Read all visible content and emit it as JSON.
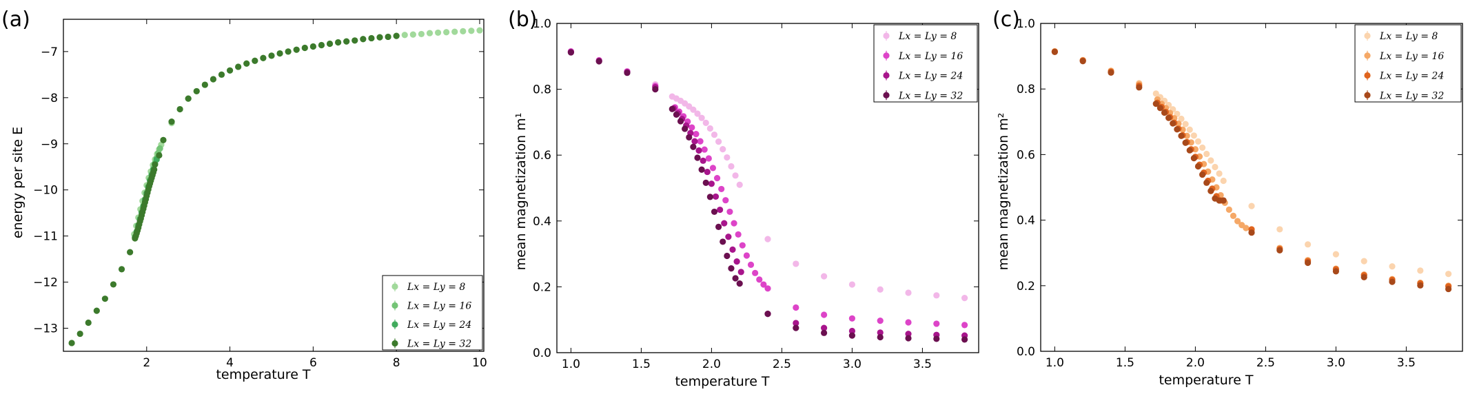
{
  "chart_data": [
    {
      "type": "scatter",
      "panel_label": "(a)",
      "xlabel": "temperature T",
      "ylabel": "energy per site E",
      "xlim": [
        0,
        10.1
      ],
      "ylim": [
        -13.5,
        -6.3
      ],
      "xticks": [
        2,
        4,
        6,
        8,
        10
      ],
      "xtick_labels": [
        "2",
        "4",
        "6",
        "8",
        "10"
      ],
      "yticks": [
        -13,
        -12,
        -11,
        -10,
        -9,
        -8,
        -7
      ],
      "ytick_labels": [
        "−13",
        "−12",
        "−11",
        "−10",
        "−9",
        "−8",
        "−7"
      ],
      "legend_loc": "lower-right",
      "grid": false,
      "series": [
        {
          "name": "Lx = Ly = 8",
          "color": "#a1d99b",
          "x": [
            1.7,
            1.75,
            1.8,
            1.85,
            1.9,
            1.95,
            2.0,
            2.05,
            2.1,
            2.15,
            2.2,
            2.25,
            2.3,
            2.35,
            2.4,
            2.6,
            2.8,
            3.0,
            3.2,
            3.4,
            3.6,
            3.8,
            4.0,
            4.2,
            4.4,
            4.6,
            4.8,
            5.0,
            5.2,
            5.4,
            5.6,
            5.8,
            6.0,
            6.2,
            6.4,
            6.6,
            6.8,
            7.0,
            7.2,
            7.4,
            7.6,
            7.8,
            8.0,
            8.2,
            8.4,
            8.6,
            8.8,
            9.0,
            9.2,
            9.4,
            9.6,
            9.8,
            10.0
          ],
          "y": [
            -10.96,
            -10.78,
            -10.6,
            -10.42,
            -10.24,
            -10.06,
            -9.9,
            -9.74,
            -9.6,
            -9.46,
            -9.34,
            -9.22,
            -9.12,
            -9.02,
            -8.92,
            -8.55,
            -8.25,
            -8.02,
            -7.86,
            -7.72,
            -7.6,
            -7.5,
            -7.41,
            -7.33,
            -7.26,
            -7.2,
            -7.14,
            -7.09,
            -7.04,
            -7.0,
            -6.96,
            -6.92,
            -6.89,
            -6.86,
            -6.83,
            -6.8,
            -6.78,
            -6.76,
            -6.73,
            -6.71,
            -6.69,
            -6.68,
            -6.66,
            -6.64,
            -6.63,
            -6.62,
            -6.6,
            -6.59,
            -6.58,
            -6.57,
            -6.56,
            -6.55,
            -6.54
          ]
        },
        {
          "name": "Lx = Ly = 16",
          "color": "#74c476",
          "x": [
            1.72,
            1.76,
            1.8,
            1.84,
            1.88,
            1.92,
            1.96,
            2.0,
            2.04,
            2.08,
            2.12,
            2.16,
            2.2,
            2.24,
            2.28,
            2.32
          ],
          "y": [
            -11.02,
            -10.9,
            -10.76,
            -10.62,
            -10.48,
            -10.34,
            -10.2,
            -10.06,
            -9.92,
            -9.78,
            -9.66,
            -9.54,
            -9.42,
            -9.31,
            -9.2,
            -9.1
          ]
        },
        {
          "name": "Lx = Ly = 24",
          "color": "#41ab5d",
          "x": [
            1.72,
            1.76,
            1.8,
            1.84,
            1.88,
            1.92,
            1.96,
            2.0,
            2.04,
            2.08,
            2.12,
            2.16,
            2.2,
            2.24
          ],
          "y": [
            -11.03,
            -10.91,
            -10.78,
            -10.64,
            -10.5,
            -10.36,
            -10.22,
            -10.08,
            -9.94,
            -9.8,
            -9.68,
            -9.56,
            -9.44,
            -9.34
          ]
        },
        {
          "name": "Lx = Ly = 32",
          "color": "#3c7a2c",
          "x": [
            0.2,
            0.4,
            0.6,
            0.8,
            1.0,
            1.2,
            1.4,
            1.6,
            1.72,
            1.74,
            1.76,
            1.78,
            1.8,
            1.82,
            1.84,
            1.86,
            1.88,
            1.9,
            1.92,
            1.94,
            1.96,
            1.98,
            2.0,
            2.02,
            2.04,
            2.06,
            2.08,
            2.1,
            2.12,
            2.14,
            2.16,
            2.18,
            2.2,
            2.3,
            2.4,
            2.6,
            2.8,
            3.0,
            3.2,
            3.4,
            3.6,
            3.8,
            4.0,
            4.2,
            4.4,
            4.6,
            4.8,
            5.0,
            5.2,
            5.4,
            5.6,
            5.8,
            6.0,
            6.2,
            6.4,
            6.6,
            6.8,
            7.0,
            7.2,
            7.4,
            7.6,
            7.8,
            8.0
          ],
          "y": [
            -13.32,
            -13.12,
            -12.88,
            -12.62,
            -12.36,
            -12.05,
            -11.72,
            -11.35,
            -11.05,
            -11.0,
            -10.94,
            -10.88,
            -10.82,
            -10.75,
            -10.68,
            -10.62,
            -10.55,
            -10.48,
            -10.41,
            -10.34,
            -10.27,
            -10.2,
            -10.13,
            -10.06,
            -9.99,
            -9.92,
            -9.86,
            -9.8,
            -9.74,
            -9.68,
            -9.62,
            -9.56,
            -9.45,
            -9.25,
            -8.92,
            -8.52,
            -8.25,
            -8.02,
            -7.86,
            -7.72,
            -7.6,
            -7.5,
            -7.41,
            -7.33,
            -7.26,
            -7.2,
            -7.14,
            -7.09,
            -7.04,
            -7.0,
            -6.96,
            -6.92,
            -6.89,
            -6.86,
            -6.83,
            -6.8,
            -6.78,
            -6.76,
            -6.73,
            -6.71,
            -6.69,
            -6.68,
            -6.66
          ]
        }
      ]
    },
    {
      "type": "scatter",
      "panel_label": "(b)",
      "xlabel": "temperature T",
      "ylabel": "mean magnetization m¹",
      "xlim": [
        0.9,
        3.9
      ],
      "ylim": [
        0.0,
        1.0
      ],
      "xticks": [
        1.0,
        1.5,
        2.0,
        2.5,
        3.0,
        3.5
      ],
      "xtick_labels": [
        "1.0",
        "1.5",
        "2.0",
        "2.5",
        "3.0",
        "3.5"
      ],
      "yticks": [
        0.0,
        0.2,
        0.4,
        0.6,
        0.8,
        1.0
      ],
      "ytick_labels": [
        "0.0",
        "0.2",
        "0.4",
        "0.6",
        "0.8",
        "1.0"
      ],
      "legend_loc": "top-right",
      "grid": false,
      "series": [
        {
          "name": "Lx = Ly = 8",
          "color": "#f2b7e8",
          "x": [
            1.0,
            1.2,
            1.4,
            1.6,
            1.72,
            1.75,
            1.78,
            1.81,
            1.84,
            1.87,
            1.9,
            1.93,
            1.96,
            1.99,
            2.02,
            2.05,
            2.08,
            2.11,
            2.14,
            2.17,
            2.2,
            2.4,
            2.6,
            2.8,
            3.0,
            3.2,
            3.4,
            3.6,
            3.8
          ],
          "y": [
            0.915,
            0.888,
            0.855,
            0.815,
            0.778,
            0.772,
            0.765,
            0.757,
            0.748,
            0.738,
            0.726,
            0.713,
            0.698,
            0.681,
            0.662,
            0.641,
            0.618,
            0.593,
            0.566,
            0.538,
            0.51,
            0.345,
            0.27,
            0.232,
            0.207,
            0.192,
            0.182,
            0.174,
            0.166
          ]
        },
        {
          "name": "Lx = Ly = 16",
          "color": "#dd44c8",
          "x": [
            1.0,
            1.2,
            1.4,
            1.6,
            1.74,
            1.77,
            1.8,
            1.83,
            1.86,
            1.89,
            1.92,
            1.95,
            1.98,
            2.01,
            2.04,
            2.07,
            2.1,
            2.13,
            2.16,
            2.19,
            2.22,
            2.25,
            2.28,
            2.31,
            2.34,
            2.37,
            2.4,
            2.6,
            2.8,
            3.0,
            3.2,
            3.4,
            3.6,
            3.8
          ],
          "y": [
            0.915,
            0.888,
            0.854,
            0.81,
            0.745,
            0.732,
            0.718,
            0.702,
            0.684,
            0.664,
            0.642,
            0.617,
            0.59,
            0.561,
            0.53,
            0.497,
            0.463,
            0.428,
            0.393,
            0.359,
            0.326,
            0.295,
            0.267,
            0.242,
            0.222,
            0.207,
            0.195,
            0.137,
            0.115,
            0.104,
            0.097,
            0.092,
            0.088,
            0.084
          ]
        },
        {
          "name": "Lx = Ly = 24",
          "color": "#a8158c",
          "x": [
            1.0,
            1.2,
            1.4,
            1.6,
            1.73,
            1.76,
            1.79,
            1.82,
            1.85,
            1.88,
            1.91,
            1.94,
            1.97,
            2.0,
            2.03,
            2.06,
            2.09,
            2.12,
            2.15,
            2.18,
            2.21,
            2.4,
            2.6,
            2.8,
            3.0,
            3.2,
            3.4,
            3.6,
            3.8
          ],
          "y": [
            0.913,
            0.886,
            0.852,
            0.806,
            0.742,
            0.727,
            0.71,
            0.69,
            0.667,
            0.642,
            0.614,
            0.583,
            0.549,
            0.513,
            0.474,
            0.434,
            0.393,
            0.352,
            0.313,
            0.277,
            0.245,
            0.118,
            0.09,
            0.075,
            0.066,
            0.061,
            0.057,
            0.054,
            0.052
          ]
        },
        {
          "name": "Lx = Ly = 32",
          "color": "#6b1050",
          "x": [
            1.0,
            1.2,
            1.4,
            1.6,
            1.72,
            1.75,
            1.78,
            1.81,
            1.84,
            1.87,
            1.9,
            1.93,
            1.96,
            1.99,
            2.02,
            2.05,
            2.08,
            2.11,
            2.14,
            2.17,
            2.2,
            2.4,
            2.6,
            2.8,
            3.0,
            3.2,
            3.4,
            3.6,
            3.8
          ],
          "y": [
            0.912,
            0.885,
            0.85,
            0.8,
            0.74,
            0.723,
            0.703,
            0.68,
            0.654,
            0.625,
            0.592,
            0.556,
            0.516,
            0.473,
            0.428,
            0.382,
            0.337,
            0.294,
            0.256,
            0.226,
            0.21,
            0.118,
            0.075,
            0.06,
            0.052,
            0.047,
            0.044,
            0.042,
            0.04
          ]
        }
      ]
    },
    {
      "type": "scatter",
      "panel_label": "(c)",
      "xlabel": "temperature T",
      "ylabel": "mean magnetization m²",
      "xlim": [
        0.9,
        3.9
      ],
      "ylim": [
        0.0,
        1.0
      ],
      "xticks": [
        1.0,
        1.5,
        2.0,
        2.5,
        3.0,
        3.5
      ],
      "xtick_labels": [
        "1.0",
        "1.5",
        "2.0",
        "2.5",
        "3.0",
        "3.5"
      ],
      "yticks": [
        0.0,
        0.2,
        0.4,
        0.6,
        0.8,
        1.0
      ],
      "ytick_labels": [
        "0.0",
        "0.2",
        "0.4",
        "0.6",
        "0.8",
        "1.0"
      ],
      "legend_loc": "top-right",
      "grid": false,
      "series": [
        {
          "name": "Lx = Ly = 8",
          "color": "#fbd4ae",
          "x": [
            1.0,
            1.2,
            1.4,
            1.6,
            1.72,
            1.75,
            1.78,
            1.81,
            1.84,
            1.87,
            1.9,
            1.93,
            1.96,
            1.99,
            2.02,
            2.05,
            2.08,
            2.11,
            2.14,
            2.17,
            2.2,
            2.4,
            2.6,
            2.8,
            3.0,
            3.2,
            3.4,
            3.6,
            3.8
          ],
          "y": [
            0.915,
            0.888,
            0.856,
            0.818,
            0.786,
            0.775,
            0.764,
            0.751,
            0.738,
            0.724,
            0.709,
            0.693,
            0.676,
            0.658,
            0.64,
            0.621,
            0.602,
            0.582,
            0.562,
            0.542,
            0.52,
            0.443,
            0.372,
            0.326,
            0.296,
            0.275,
            0.259,
            0.246,
            0.236
          ]
        },
        {
          "name": "Lx = Ly = 16",
          "color": "#f5a867",
          "x": [
            1.0,
            1.2,
            1.4,
            1.6,
            1.73,
            1.76,
            1.79,
            1.82,
            1.85,
            1.88,
            1.91,
            1.94,
            1.97,
            2.0,
            2.03,
            2.06,
            2.09,
            2.12,
            2.15,
            2.18,
            2.21,
            2.24,
            2.27,
            2.3,
            2.33,
            2.36,
            2.4,
            2.6,
            2.8,
            3.0,
            3.2,
            3.4,
            3.6,
            3.8
          ],
          "y": [
            0.915,
            0.888,
            0.855,
            0.815,
            0.768,
            0.755,
            0.742,
            0.727,
            0.711,
            0.694,
            0.676,
            0.657,
            0.637,
            0.616,
            0.594,
            0.571,
            0.548,
            0.524,
            0.5,
            0.476,
            0.453,
            0.432,
            0.413,
            0.397,
            0.385,
            0.376,
            0.37,
            0.315,
            0.278,
            0.252,
            0.234,
            0.22,
            0.209,
            0.2
          ]
        },
        {
          "name": "Lx = Ly = 24",
          "color": "#e0641e",
          "x": [
            1.0,
            1.2,
            1.4,
            1.6,
            1.73,
            1.76,
            1.79,
            1.82,
            1.85,
            1.88,
            1.91,
            1.94,
            1.97,
            2.0,
            2.03,
            2.06,
            2.09,
            2.12,
            2.15,
            2.18,
            2.2,
            2.4,
            2.6,
            2.8,
            3.0,
            3.2,
            3.4,
            3.6,
            3.8
          ],
          "y": [
            0.914,
            0.887,
            0.853,
            0.81,
            0.758,
            0.745,
            0.73,
            0.714,
            0.697,
            0.679,
            0.659,
            0.638,
            0.616,
            0.593,
            0.569,
            0.545,
            0.52,
            0.496,
            0.473,
            0.46,
            0.46,
            0.372,
            0.312,
            0.275,
            0.25,
            0.232,
            0.218,
            0.207,
            0.198
          ]
        },
        {
          "name": "Lx = Ly = 32",
          "color": "#a8491a",
          "x": [
            1.0,
            1.2,
            1.4,
            1.6,
            1.72,
            1.75,
            1.78,
            1.81,
            1.84,
            1.87,
            1.9,
            1.93,
            1.96,
            1.99,
            2.02,
            2.05,
            2.08,
            2.11,
            2.14,
            2.17,
            2.2,
            2.4,
            2.6,
            2.8,
            3.0,
            3.2,
            3.4,
            3.6,
            3.8
          ],
          "y": [
            0.913,
            0.885,
            0.85,
            0.805,
            0.755,
            0.742,
            0.728,
            0.712,
            0.695,
            0.677,
            0.657,
            0.636,
            0.613,
            0.589,
            0.564,
            0.539,
            0.514,
            0.489,
            0.466,
            0.46,
            0.46,
            0.362,
            0.308,
            0.27,
            0.244,
            0.226,
            0.212,
            0.201,
            0.19
          ]
        }
      ]
    }
  ]
}
